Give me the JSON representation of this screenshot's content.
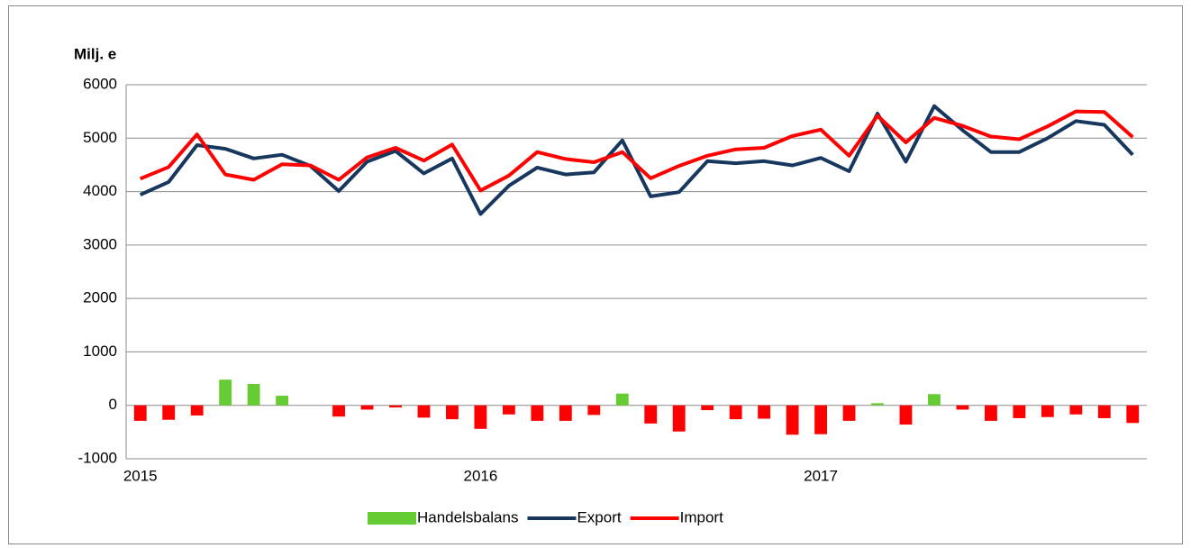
{
  "chart_data": {
    "type": "bar_line",
    "y_label": "Milj. e",
    "categories": [
      "2015",
      null,
      null,
      null,
      null,
      null,
      null,
      null,
      null,
      null,
      null,
      null,
      "2016",
      null,
      null,
      null,
      null,
      null,
      null,
      null,
      null,
      null,
      null,
      null,
      "2017",
      null,
      null,
      null,
      null,
      null,
      null,
      null,
      null,
      null,
      null,
      null
    ],
    "series": [
      {
        "name": "Handelsbalans",
        "type": "bar",
        "color": "#66cc33",
        "negative_color": "#ff0000",
        "values": [
          -290,
          -270,
          -190,
          480,
          400,
          180,
          0,
          -210,
          -80,
          -40,
          -230,
          -260,
          -440,
          -170,
          -290,
          -290,
          -180,
          220,
          -340,
          -490,
          -90,
          -260,
          -250,
          -550,
          -540,
          -290,
          40,
          -360,
          210,
          -80,
          -290,
          -240,
          -220,
          -170,
          -240,
          -330
        ]
      },
      {
        "name": "Export",
        "type": "line",
        "color": "#17375e",
        "values": [
          3940,
          4180,
          4870,
          4800,
          4620,
          4690,
          4480,
          4010,
          4560,
          4760,
          4340,
          4620,
          3580,
          4110,
          4450,
          4320,
          4360,
          4960,
          3910,
          3990,
          4570,
          4530,
          4570,
          4490,
          4630,
          4380,
          5460,
          4560,
          5600,
          5150,
          4740,
          4740,
          5000,
          5320,
          5250,
          4690
        ]
      },
      {
        "name": "Import",
        "type": "line",
        "color": "#ff0000",
        "values": [
          4240,
          4460,
          5070,
          4320,
          4220,
          4510,
          4490,
          4220,
          4640,
          4820,
          4580,
          4880,
          4020,
          4300,
          4740,
          4610,
          4550,
          4740,
          4250,
          4480,
          4670,
          4790,
          4820,
          5040,
          5160,
          4670,
          5420,
          4920,
          5380,
          5230,
          5030,
          4980,
          5220,
          5500,
          5490,
          5020
        ]
      }
    ],
    "ylim": [
      -1000,
      6000
    ],
    "yticks": [
      -1000,
      0,
      1000,
      2000,
      3000,
      4000,
      5000,
      6000
    ],
    "grid": true,
    "legend": "bottom"
  }
}
